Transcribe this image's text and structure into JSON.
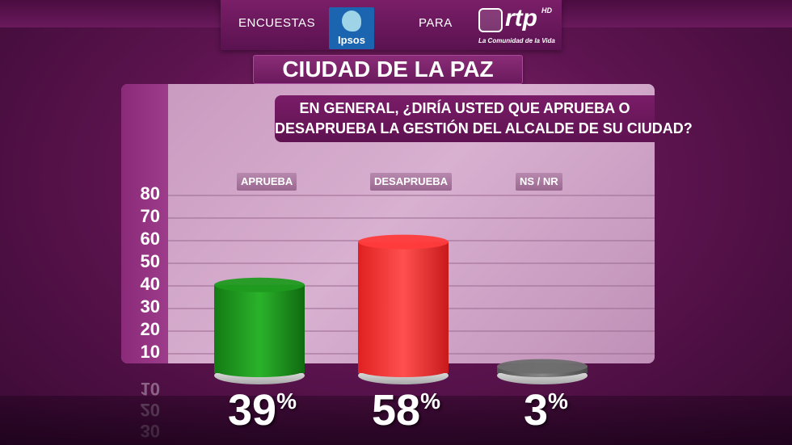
{
  "header": {
    "left_text": "ENCUESTAS",
    "middle_text": "PARA",
    "ipsos_logo_text": "Ipsos",
    "rtp_logo_text": "rtp",
    "rtp_hd": "HD",
    "rtp_slogan": "La Comunidad de la Vida"
  },
  "city_title": "CIUDAD DE LA PAZ",
  "question": {
    "line1": "EN GENERAL, ¿DIRÍA USTED QUE APRUEBA O",
    "line2": "DESAPRUEBA LA GESTIÓN DEL ALCALDE DE SU CIUDAD?"
  },
  "chart_data": {
    "type": "bar",
    "categories": [
      "APRUEBA",
      "DESAPRUEBA",
      "NS / NR"
    ],
    "values": [
      39,
      58,
      3
    ],
    "value_labels": [
      "39",
      "58",
      "3"
    ],
    "percent_symbol": "%",
    "ylim": [
      0,
      80
    ],
    "yticks": [
      "10",
      "20",
      "30",
      "40",
      "50",
      "60",
      "70",
      "80"
    ],
    "colors": [
      "#1f9a1f",
      "#ff3b3b",
      "#6e6e6e"
    ],
    "grid": true,
    "legend": "none"
  }
}
